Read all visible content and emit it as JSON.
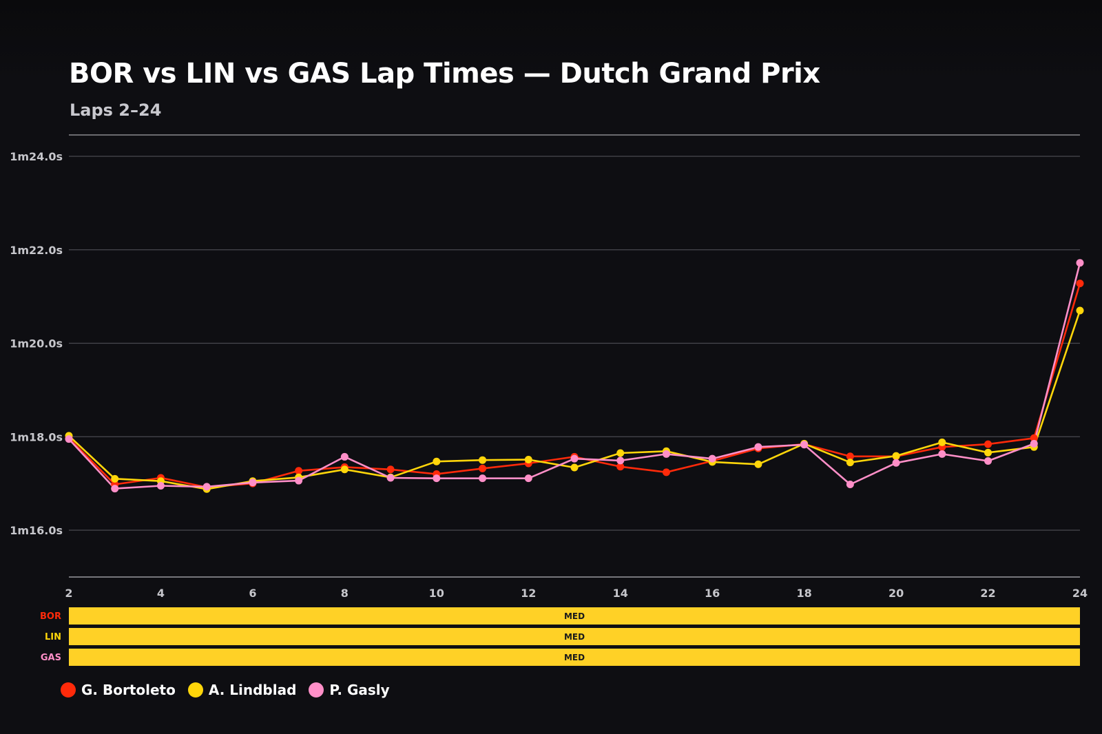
{
  "title": "BOR vs LIN vs GAS Lap Times — Dutch Grand Prix",
  "subtitle": "Laps 2–24",
  "chart_data": {
    "type": "line",
    "title": "BOR vs LIN vs GAS Lap Times — Dutch Grand Prix",
    "subtitle": "Laps 2–24",
    "x": [
      2,
      3,
      4,
      5,
      6,
      7,
      8,
      9,
      10,
      11,
      12,
      13,
      14,
      15,
      16,
      17,
      18,
      19,
      20,
      21,
      22,
      23,
      24
    ],
    "x_ticks": [
      2,
      4,
      6,
      8,
      10,
      12,
      14,
      16,
      18,
      20,
      22,
      24
    ],
    "xlim": [
      2,
      24
    ],
    "y_unit": "seconds",
    "ylim": [
      75.0,
      78.5
    ],
    "y_ticks": [
      {
        "value": 76.0,
        "label": "1m16.0s"
      },
      {
        "value": 78.0,
        "label": "1m18.0s"
      },
      {
        "value": 80.0,
        "label": "1m20.0s"
      },
      {
        "value": 82.0,
        "label": "1m22.0s"
      },
      {
        "value": 84.0,
        "label": "1m24.0s"
      }
    ],
    "grid": true,
    "legend_position": "bottom-left",
    "series": [
      {
        "name": "G. Bortoleto",
        "code": "BOR",
        "color": "#ff2a0a",
        "values": [
          77.97,
          76.98,
          77.12,
          76.92,
          77.0,
          77.27,
          77.35,
          77.3,
          77.2,
          77.32,
          77.43,
          77.57,
          77.36,
          77.24,
          77.48,
          77.75,
          77.84,
          77.58,
          77.58,
          77.78,
          77.84,
          77.97,
          81.28
        ]
      },
      {
        "name": "A. Lindblad",
        "code": "LIN",
        "color": "#ffd60a",
        "values": [
          78.02,
          77.1,
          77.05,
          76.88,
          77.05,
          77.13,
          77.3,
          77.13,
          77.47,
          77.5,
          77.51,
          77.34,
          77.65,
          77.69,
          77.46,
          77.41,
          77.85,
          77.45,
          77.59,
          77.88,
          77.66,
          77.78,
          80.7
        ]
      },
      {
        "name": "P. Gasly",
        "code": "GAS",
        "color": "#ff8fc8",
        "values": [
          77.95,
          76.89,
          76.95,
          76.93,
          77.02,
          77.06,
          77.57,
          77.12,
          77.11,
          77.11,
          77.11,
          77.53,
          77.49,
          77.63,
          77.53,
          77.78,
          77.83,
          76.98,
          77.44,
          77.63,
          77.48,
          77.85,
          81.72
        ]
      }
    ],
    "tyre_strip": [
      {
        "code": "BOR",
        "label": "BOR",
        "compound": "MED",
        "from_lap": 2,
        "to_lap": 24,
        "color": "#ffd126"
      },
      {
        "code": "LIN",
        "label": "LIN",
        "compound": "MED",
        "from_lap": 2,
        "to_lap": 24,
        "color": "#ffd126"
      },
      {
        "code": "GAS",
        "label": "GAS",
        "compound": "MED",
        "from_lap": 2,
        "to_lap": 24,
        "color": "#ffd126"
      }
    ]
  },
  "legend": [
    {
      "label": "G. Bortoleto",
      "color": "#ff2a0a"
    },
    {
      "label": "A. Lindblad",
      "color": "#ffd60a"
    },
    {
      "label": "P. Gasly",
      "color": "#ff8fc8"
    }
  ]
}
